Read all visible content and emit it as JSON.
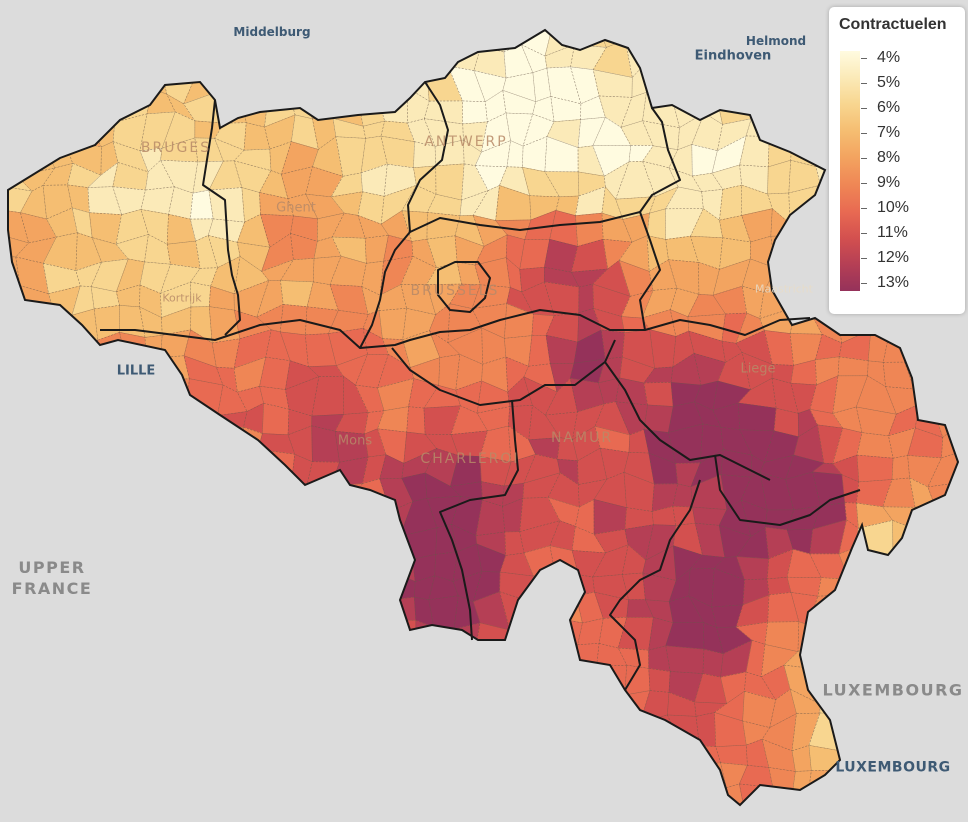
{
  "legend": {
    "title": "Contractuelen",
    "labels": [
      "4%",
      "5%",
      "6%",
      "7%",
      "8%",
      "9%",
      "10%",
      "11%",
      "12%",
      "13%"
    ],
    "colors": [
      "#fffbe0",
      "#fbeab8",
      "#f8d690",
      "#f5be72",
      "#f3a460",
      "#ef8655",
      "#e86a52",
      "#d3504f",
      "#b53f55",
      "#95325a"
    ]
  },
  "external_labels": {
    "middelburg": "Middelburg",
    "helmond": "Helmond",
    "eindhoven": "Eindhoven",
    "lille": "LILLE",
    "maastricht": "Maastricht",
    "upper_france_line1": "UPPER",
    "upper_france_line2": "FRANCE",
    "luxembourg_country": "LUXEMBOURG",
    "luxembourg_city": "LUXEMBOURG"
  },
  "basemap_labels": {
    "bruges": "BRUGES",
    "antwerp": "ANTWERP",
    "ghent": "Ghent",
    "brussels": "BRUSSELS",
    "kortrijk": "Kortrijk",
    "liege": "Liege",
    "mons": "Mons",
    "charleroi": "CHARLEROI",
    "namur": "NAMUR"
  },
  "map": {
    "border_color": "#1a1a1a",
    "municipality_line_color": "#6b5a4a"
  }
}
